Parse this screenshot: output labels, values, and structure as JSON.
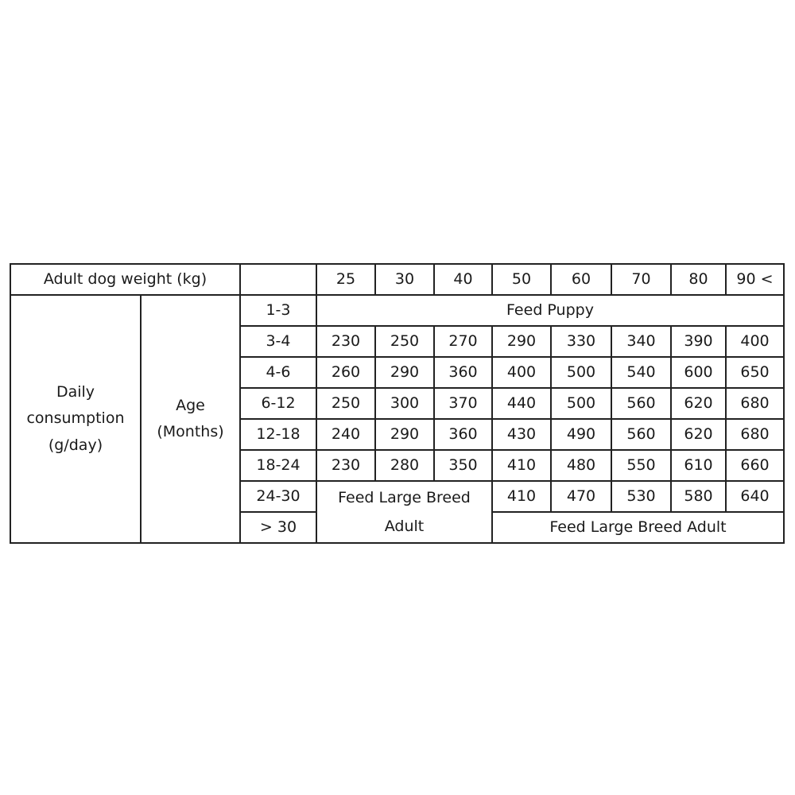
{
  "table": {
    "header_label": "Adult dog weight (kg)",
    "weights": [
      "25",
      "30",
      "40",
      "50",
      "60",
      "70",
      "80",
      "90 <"
    ],
    "row_group_label": "Daily consumption (g/day)",
    "age_label": "Age (Months)",
    "puppy_row": {
      "age": "1-3",
      "text": "Feed Puppy"
    },
    "rows": [
      {
        "age": "3-4",
        "values": [
          "230",
          "250",
          "270",
          "290",
          "330",
          "340",
          "390",
          "400"
        ]
      },
      {
        "age": "4-6",
        "values": [
          "260",
          "290",
          "360",
          "400",
          "500",
          "540",
          "600",
          "650"
        ]
      },
      {
        "age": "6-12",
        "values": [
          "250",
          "300",
          "370",
          "440",
          "500",
          "560",
          "620",
          "680"
        ]
      },
      {
        "age": "12-18",
        "values": [
          "240",
          "290",
          "360",
          "430",
          "490",
          "560",
          "620",
          "680"
        ]
      },
      {
        "age": "18-24",
        "values": [
          "230",
          "280",
          "350",
          "410",
          "480",
          "550",
          "610",
          "660"
        ]
      }
    ],
    "row_24_30": {
      "age": "24-30",
      "merged_text": "Feed Large Breed Adult",
      "values": [
        "410",
        "470",
        "530",
        "580",
        "640"
      ]
    },
    "row_over_30": {
      "age": "> 30",
      "text": "Feed Large Breed Adult"
    }
  }
}
